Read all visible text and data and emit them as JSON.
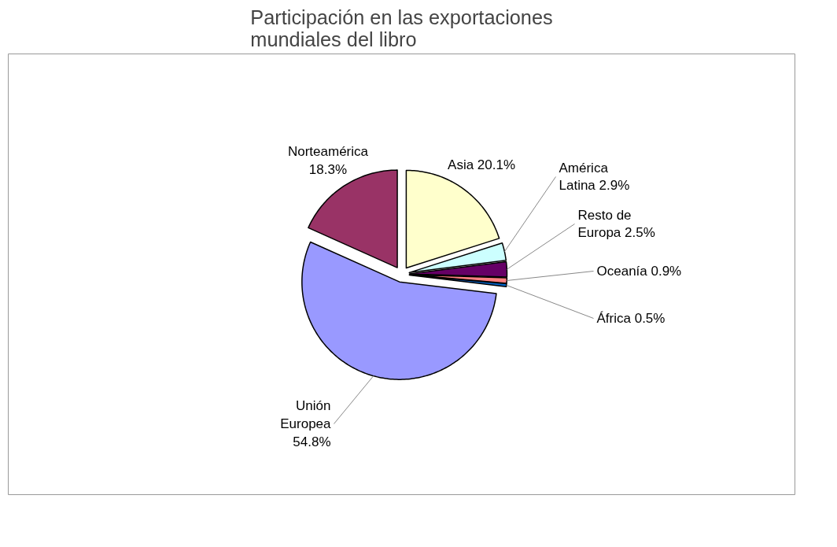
{
  "chart_data": {
    "type": "pie",
    "title": "Participación en las exportaciones mundiales del libro",
    "categories": [
      "Asia",
      "América Latina",
      "Resto de Europa",
      "Oceanía",
      "África",
      "Unión Europea",
      "Norteamérica"
    ],
    "values": [
      20.1,
      2.9,
      2.5,
      0.9,
      0.5,
      54.8,
      18.3
    ],
    "colors": [
      "#ffffcc",
      "#ccffff",
      "#660066",
      "#ff8080",
      "#0066cc",
      "#9999ff",
      "#993366"
    ],
    "value_labels": [
      "20.1%",
      "2.9%",
      "2.5%",
      "0.9%",
      "0.5%",
      "54.8%",
      "18.3%"
    ]
  }
}
